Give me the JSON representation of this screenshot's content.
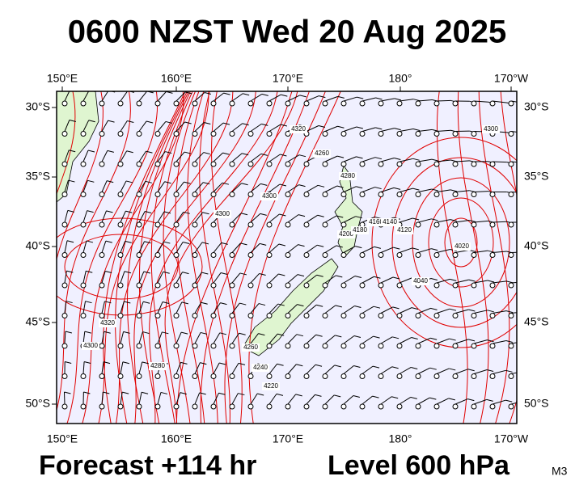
{
  "header": {
    "title": "0600 NZST Wed 20 Aug 2025"
  },
  "map": {
    "lon_labels": [
      "150°E",
      "160°E",
      "170°E",
      "180°",
      "170°W"
    ],
    "lat_labels": [
      "30°S",
      "35°S",
      "40°S",
      "45°S",
      "50°S"
    ],
    "contour_labels": [
      "4320",
      "4260",
      "4280",
      "4300",
      "4300",
      "4200",
      "4180",
      "4160",
      "4140",
      "4120",
      "4020",
      "4040",
      "4300",
      "4320",
      "4300",
      "4280",
      "4260",
      "4240",
      "4220"
    ]
  },
  "footer": {
    "forecast": "Forecast +114 hr",
    "level": "Level 600 hPa",
    "model": "M3"
  }
}
